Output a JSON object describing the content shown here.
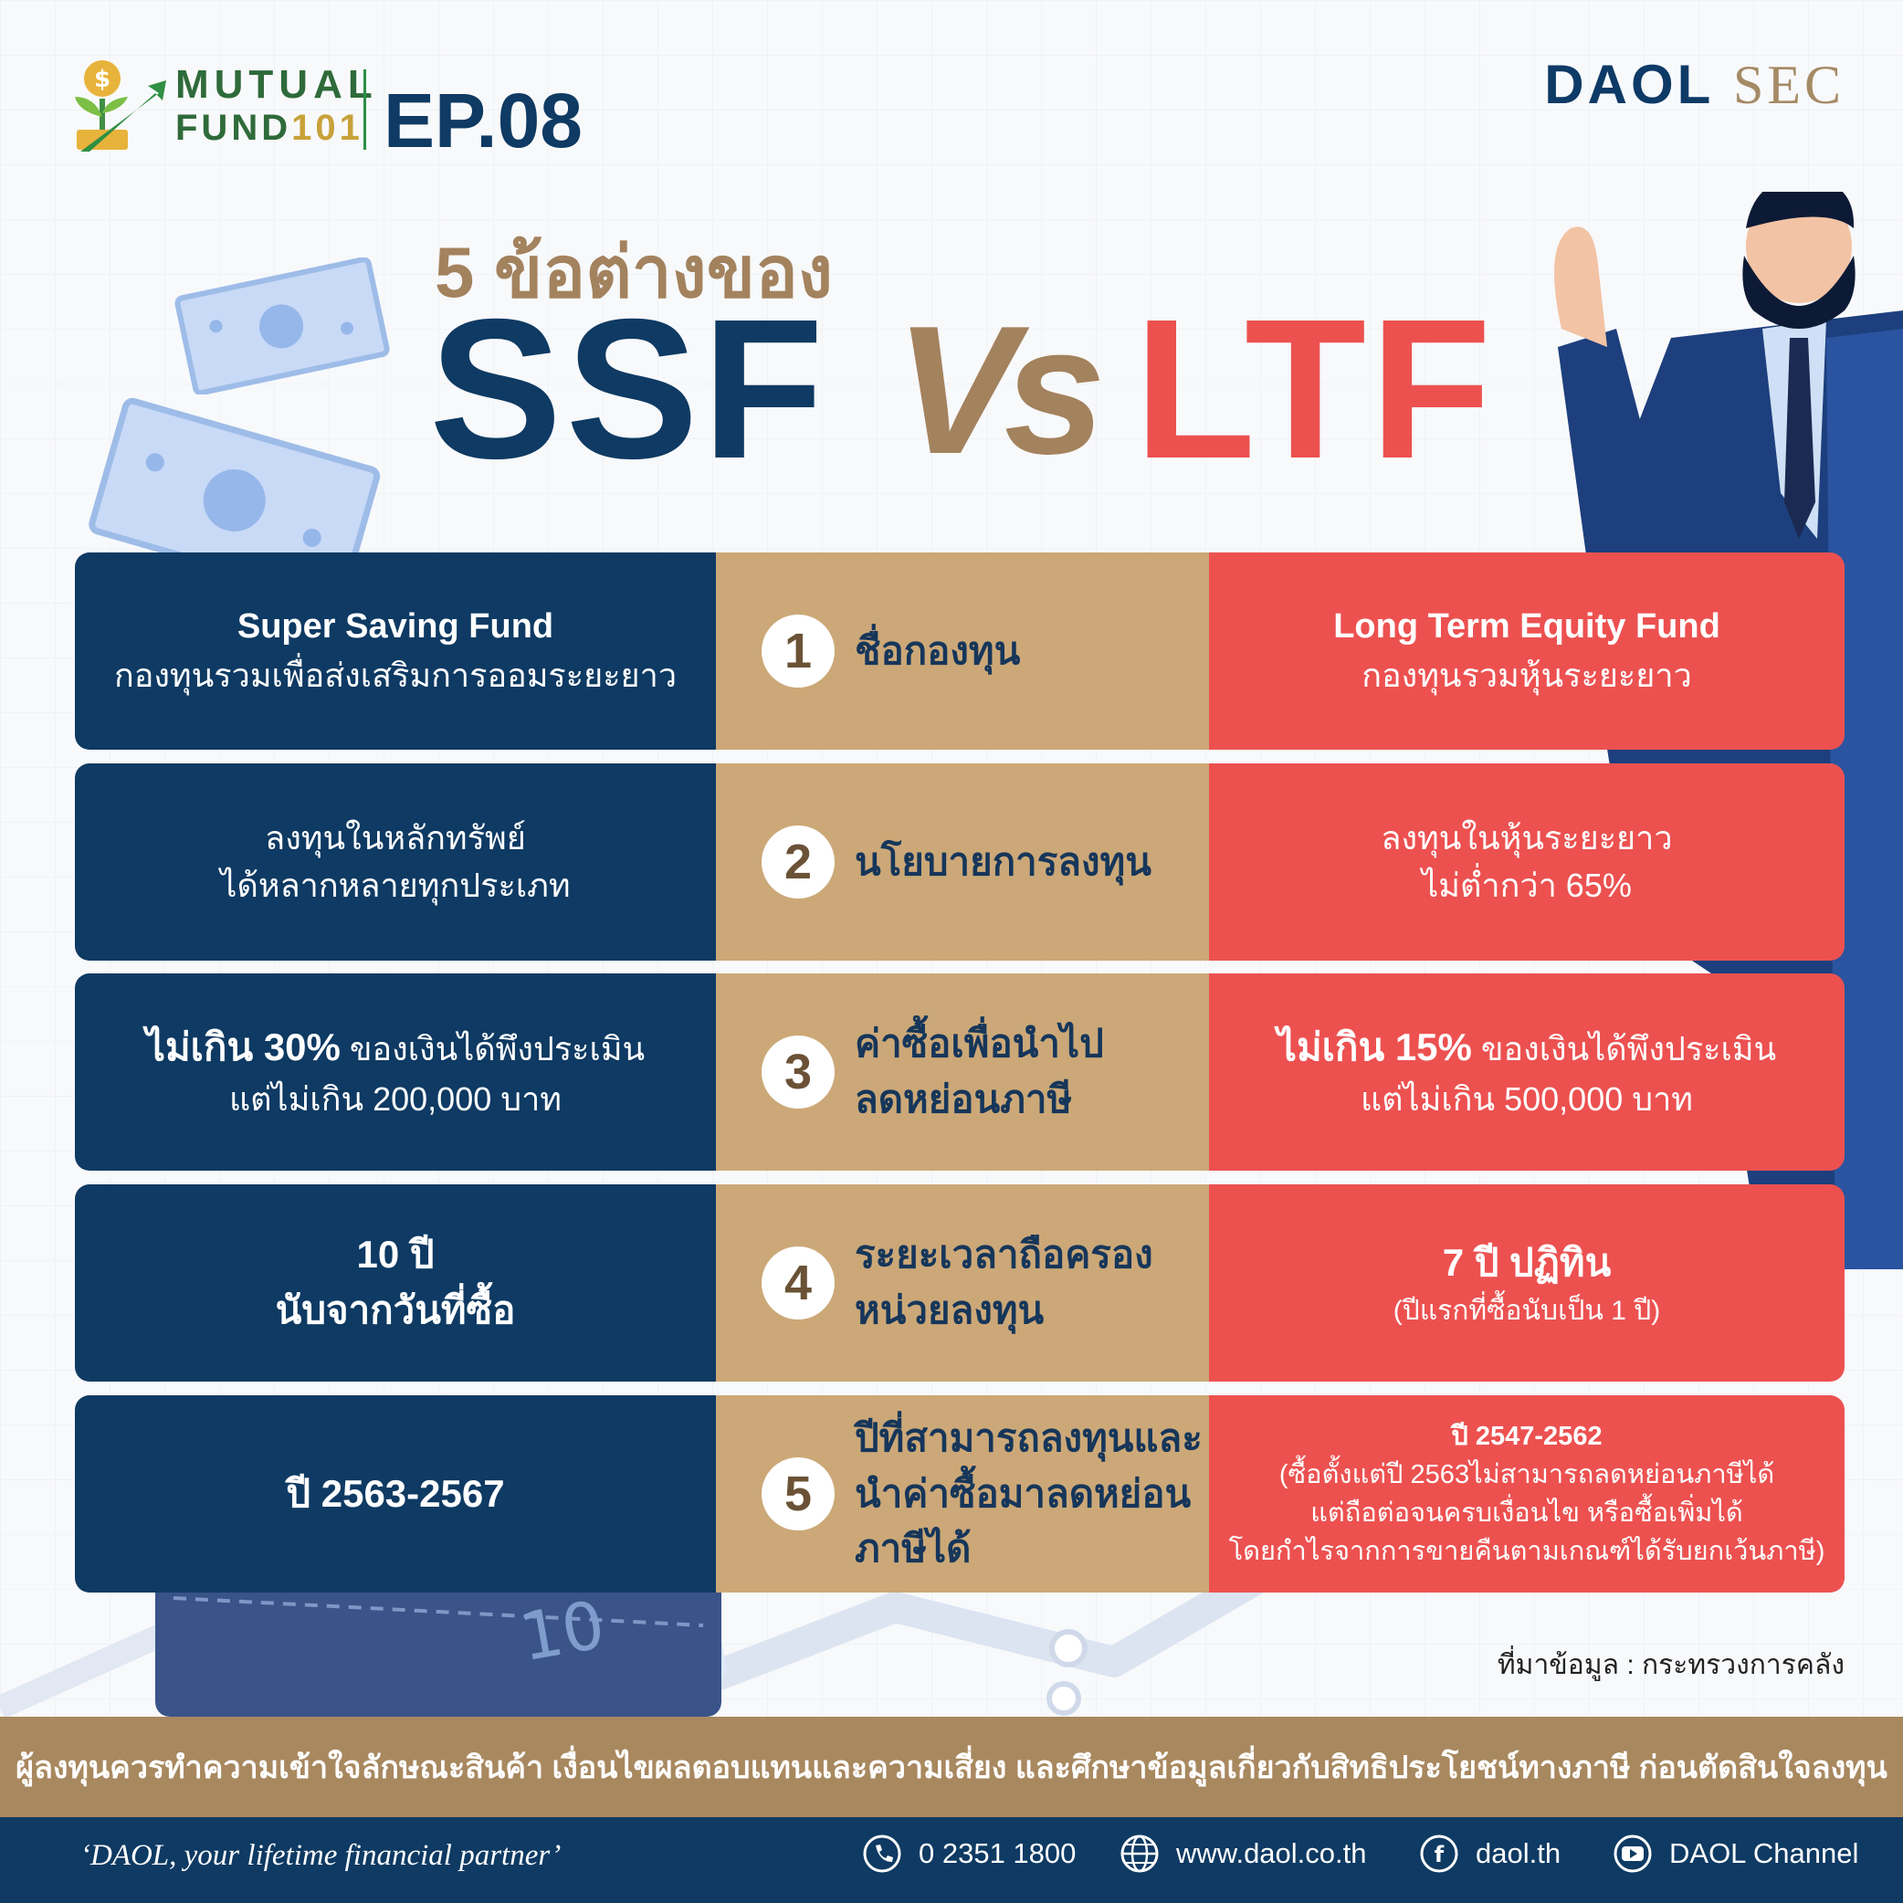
{
  "header": {
    "series_line1": "MUTUAL",
    "series_line2_main": "FUND",
    "series_line2_accent": "101",
    "episode": "EP.08",
    "brand_main": "DAOL",
    "brand_sub": "SEC"
  },
  "title": {
    "subtitle": "5 ข้อต่างของ",
    "left": "SSF",
    "vs": "Vs",
    "right": "LTF"
  },
  "decor": {
    "wallet_note": "10"
  },
  "rows": [
    {
      "number": "1",
      "topic": "ชื่อกองทุน",
      "left": [
        "Super Saving Fund",
        "กองทุนรวมเพื่อส่งเสริมการออมระยะยาว"
      ],
      "right": [
        "Long Term Equity Fund",
        "กองทุนรวมหุ้นระยะยาว"
      ]
    },
    {
      "number": "2",
      "topic": "นโยบายการลงทุน",
      "left": [
        "ลงทุนในหลักทรัพย์",
        "ได้หลากหลายทุกประเภท"
      ],
      "right": [
        "ลงทุนในหุ้นระยะยาว",
        "ไม่ต่ำกว่า 65%"
      ]
    },
    {
      "number": "3",
      "topic": "ค่าซื้อเพื่อนำไป\nลดหย่อนภาษี",
      "left": [
        "ไม่เกิน 30%",
        " ของเงินได้พึงประเมิน",
        "แต่ไม่เกิน 200,000 บาท"
      ],
      "right": [
        "ไม่เกิน 15%",
        " ของเงินได้พึงประเมิน",
        "แต่ไม่เกิน 500,000 บาท"
      ]
    },
    {
      "number": "4",
      "topic": "ระยะเวลาถือครอง\nหน่วยลงทุน",
      "left": [
        "10 ปี",
        "นับจากวันที่ซื้อ"
      ],
      "right": [
        "7 ปี ปฏิทิน",
        "(ปีแรกที่ซื้อนับเป็น 1 ปี)"
      ]
    },
    {
      "number": "5",
      "topic": "ปีที่สามารถลงทุนและ\nนำค่าซื้อมาลดหย่อน\nภาษีได้",
      "left": [
        "ปี 2563-2567"
      ],
      "right": [
        "ปี 2547-2562",
        "(ซื้อตั้งแต่ปี 2563ไม่สามารถลดหย่อนภาษีได้",
        "แต่ถือต่อจนครบเงื่อนไข หรือซื้อเพิ่มได้",
        "โดยกำไรจากการขายคืนตามเกณฑ์ได้รับยกเว้นภาษี)"
      ]
    }
  ],
  "source": "ที่มาข้อมูล : กระทรวงการคลัง",
  "disclaimer": "ผู้ลงทุนควรทำความเข้าใจลักษณะสินค้า เงื่อนไขผลตอบแทนและความเสี่ยง และศึกษาข้อมูลเกี่ยวกับสิทธิประโยชน์ทางภาษี ก่อนตัดสินใจลงทุน",
  "footer": {
    "tagline": "‘DAOL, your lifetime financial partner’",
    "phone": "0 2351 1800",
    "website": "www.daol.co.th",
    "facebook": "daol.th",
    "youtube": "DAOL Channel"
  },
  "colors": {
    "navy": "#0e3a63",
    "gold": "#cca878",
    "coral": "#ec5150",
    "bronze": "#a8885f"
  }
}
